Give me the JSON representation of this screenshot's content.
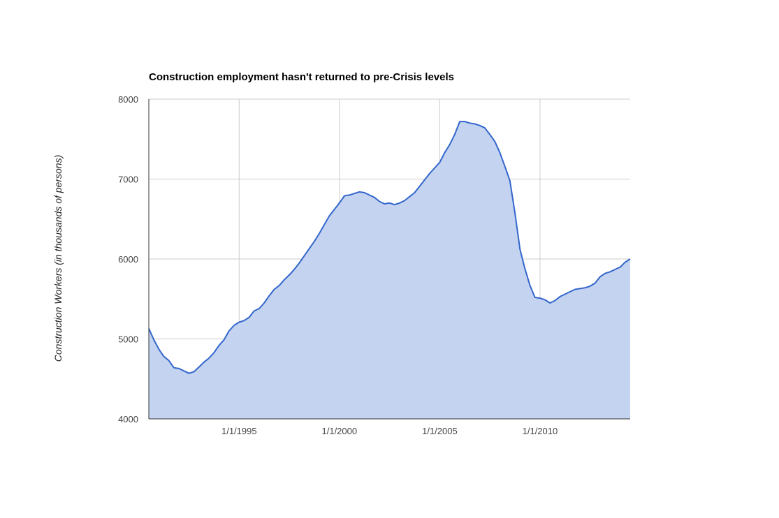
{
  "colors": {
    "line": "#3366cc",
    "area": "#c3d3f0",
    "grid": "#cccccc",
    "axis": "#333333"
  },
  "chart_data": {
    "type": "area",
    "title": "Construction employment hasn't returned to pre-Crisis levels",
    "xlabel": "",
    "ylabel": "Construction Workers (in thousands of persons)",
    "ylim": [
      4000,
      8000
    ],
    "xlim": [
      "1990-07-01",
      "2014-07-01"
    ],
    "grid": true,
    "legend": "none",
    "y_ticks": [
      {
        "label": "4000",
        "value": 4000
      },
      {
        "label": "5000",
        "value": 5000
      },
      {
        "label": "6000",
        "value": 6000
      },
      {
        "label": "7000",
        "value": 7000
      },
      {
        "label": "8000",
        "value": 8000
      }
    ],
    "x_ticks": [
      {
        "label": "1/1/1995",
        "date": "1995-01-01"
      },
      {
        "label": "1/1/2000",
        "date": "2000-01-01"
      },
      {
        "label": "1/1/2005",
        "date": "2005-01-01"
      },
      {
        "label": "1/1/2010",
        "date": "2010-01-01"
      }
    ],
    "series": [
      {
        "x": [
          "1990-07-01",
          "1990-10-01",
          "1991-01-01",
          "1991-04-01",
          "1991-07-01",
          "1991-10-01",
          "1992-01-01",
          "1992-04-01",
          "1992-07-01",
          "1992-10-01",
          "1993-01-01",
          "1993-04-01",
          "1993-07-01",
          "1993-10-01",
          "1994-01-01",
          "1994-04-01",
          "1994-07-01",
          "1994-10-01",
          "1995-01-01",
          "1995-04-01",
          "1995-07-01",
          "1995-10-01",
          "1996-01-01",
          "1996-04-01",
          "1996-07-01",
          "1996-10-01",
          "1997-01-01",
          "1997-04-01",
          "1997-07-01",
          "1997-10-01",
          "1998-01-01",
          "1998-04-01",
          "1998-07-01",
          "1998-10-01",
          "1999-01-01",
          "1999-04-01",
          "1999-07-01",
          "1999-10-01",
          "2000-01-01",
          "2000-04-01",
          "2000-07-01",
          "2000-10-01",
          "2001-01-01",
          "2001-04-01",
          "2001-07-01",
          "2001-10-01",
          "2002-01-01",
          "2002-04-01",
          "2002-07-01",
          "2002-10-01",
          "2003-01-01",
          "2003-04-01",
          "2003-07-01",
          "2003-10-01",
          "2004-01-01",
          "2004-04-01",
          "2004-07-01",
          "2004-10-01",
          "2005-01-01",
          "2005-04-01",
          "2005-07-01",
          "2005-10-01",
          "2006-01-01",
          "2006-04-01",
          "2006-07-01",
          "2006-10-01",
          "2007-01-01",
          "2007-04-01",
          "2007-07-01",
          "2007-10-01",
          "2008-01-01",
          "2008-04-01",
          "2008-07-01",
          "2008-10-01",
          "2009-01-01",
          "2009-04-01",
          "2009-07-01",
          "2009-10-01",
          "2010-01-01",
          "2010-04-01",
          "2010-07-01",
          "2010-10-01",
          "2011-01-01",
          "2011-04-01",
          "2011-07-01",
          "2011-10-01",
          "2012-01-01",
          "2012-04-01",
          "2012-07-01",
          "2012-10-01",
          "2013-01-01",
          "2013-04-01",
          "2013-07-01",
          "2013-10-01",
          "2014-01-01",
          "2014-04-01",
          "2014-07-01"
        ],
        "y": [
          5130,
          4990,
          4870,
          4780,
          4730,
          4640,
          4630,
          4600,
          4570,
          4590,
          4650,
          4710,
          4760,
          4830,
          4920,
          4990,
          5100,
          5170,
          5210,
          5230,
          5270,
          5350,
          5380,
          5450,
          5540,
          5620,
          5670,
          5740,
          5800,
          5870,
          5950,
          6040,
          6130,
          6220,
          6320,
          6430,
          6540,
          6620,
          6700,
          6790,
          6800,
          6820,
          6840,
          6830,
          6800,
          6770,
          6720,
          6690,
          6700,
          6680,
          6700,
          6730,
          6780,
          6830,
          6910,
          6990,
          7070,
          7140,
          7210,
          7330,
          7430,
          7560,
          7720,
          7720,
          7700,
          7690,
          7670,
          7640,
          7560,
          7470,
          7330,
          7160,
          6980,
          6580,
          6120,
          5880,
          5670,
          5520,
          5510,
          5490,
          5450,
          5480,
          5530,
          5560,
          5590,
          5620,
          5630,
          5640,
          5660,
          5700,
          5780,
          5820,
          5840,
          5870,
          5900,
          5960,
          6000
        ]
      }
    ]
  }
}
